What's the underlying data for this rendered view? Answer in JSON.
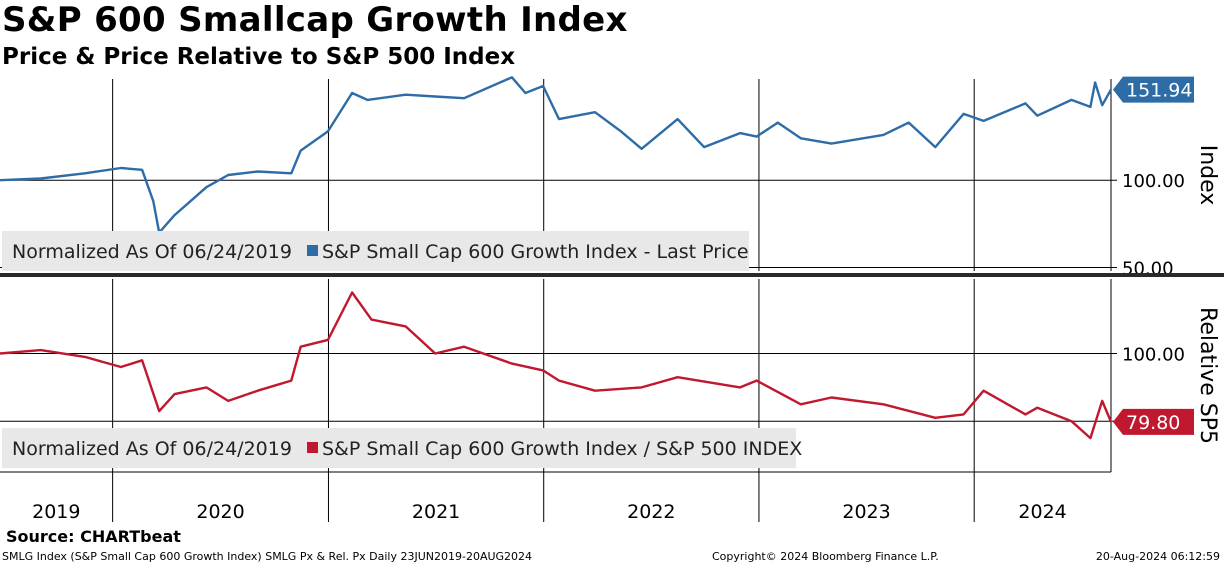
{
  "header": {
    "title": "S&P 600 Smallcap Growth Index",
    "subtitle": "Price & Price Relative to S&P 500 Index"
  },
  "footer": {
    "source": "Source: CHARTbeat",
    "left": "SMLG Index (S&P Small Cap 600 Growth Index) SMLG Px & Rel. Px  Daily 23JUN2019-20AUG2024",
    "copyright": "Copyright© 2024 Bloomberg Finance L.P.",
    "timestamp": "20-Aug-2024 06:12:59"
  },
  "colors": {
    "price_line": "#2e6ca8",
    "relative_line": "#c0182f",
    "grid": "#000000",
    "legend_bg": "#e8e8e8"
  },
  "chart_data": [
    {
      "type": "line",
      "panel": "top",
      "axis_label": "Index",
      "y_ticks": [
        50,
        100
      ],
      "y_tick_labels": [
        "50.00",
        "100.00"
      ],
      "ylim": [
        48,
        158
      ],
      "last_value": 151.94,
      "last_value_label": "151.94",
      "legend_note": "Normalized As Of 06/24/2019",
      "series": [
        {
          "name": "S&P Small Cap 600 Growth Index - Last Price",
          "x": [
            "2019-06-24",
            "2019-09-01",
            "2019-11-15",
            "2020-01-15",
            "2020-02-20",
            "2020-03-10",
            "2020-03-20",
            "2020-04-15",
            "2020-06-08",
            "2020-07-15",
            "2020-09-03",
            "2020-10-30",
            "2020-11-15",
            "2020-12-31",
            "2021-02-10",
            "2021-03-08",
            "2021-05-12",
            "2021-07-01",
            "2021-08-19",
            "2021-11-08",
            "2021-12-01",
            "2021-12-31",
            "2022-01-27",
            "2022-03-29",
            "2022-05-12",
            "2022-06-16",
            "2022-08-16",
            "2022-09-30",
            "2022-11-30",
            "2022-12-28",
            "2023-02-02",
            "2023-03-13",
            "2023-05-04",
            "2023-07-31",
            "2023-09-12",
            "2023-10-27",
            "2023-12-14",
            "2024-01-17",
            "2024-03-28",
            "2024-04-17",
            "2024-06-14",
            "2024-07-16",
            "2024-07-24",
            "2024-08-05",
            "2024-08-20"
          ],
          "values": [
            100,
            101,
            104,
            107,
            106,
            88,
            70,
            80,
            96,
            103,
            105,
            104,
            117,
            128,
            150,
            146,
            149,
            148,
            147,
            159,
            150,
            154,
            135,
            139,
            128,
            118,
            135,
            119,
            127,
            125,
            133,
            124,
            121,
            126,
            133,
            119,
            138,
            134,
            144,
            137,
            146,
            142,
            156,
            143,
            151.94
          ]
        }
      ]
    },
    {
      "type": "line",
      "panel": "bottom",
      "axis_label": "Relative SP5",
      "y_ticks": [
        80,
        100
      ],
      "y_tick_labels": [
        "",
        "100.00"
      ],
      "ylim": [
        65,
        122
      ],
      "last_value": 79.8,
      "last_value_label": "79.80",
      "legend_note": "Normalized As Of 06/24/2019",
      "series": [
        {
          "name": "S&P Small Cap 600 Growth Index / S&P 500 INDEX",
          "x": [
            "2019-06-24",
            "2019-09-01",
            "2019-11-15",
            "2020-01-15",
            "2020-02-20",
            "2020-03-20",
            "2020-04-15",
            "2020-06-08",
            "2020-07-15",
            "2020-09-03",
            "2020-10-30",
            "2020-11-15",
            "2020-12-31",
            "2021-02-10",
            "2021-03-15",
            "2021-05-12",
            "2021-07-01",
            "2021-08-19",
            "2021-11-08",
            "2021-12-31",
            "2022-01-27",
            "2022-03-29",
            "2022-06-16",
            "2022-08-16",
            "2022-11-30",
            "2022-12-28",
            "2023-03-13",
            "2023-05-04",
            "2023-07-31",
            "2023-10-27",
            "2023-12-14",
            "2024-01-17",
            "2024-03-28",
            "2024-04-17",
            "2024-06-14",
            "2024-07-16",
            "2024-08-05",
            "2024-08-20"
          ],
          "values": [
            100,
            101,
            99,
            96,
            98,
            83,
            88,
            90,
            86,
            89,
            92,
            102,
            104,
            118,
            110,
            108,
            100,
            102,
            97,
            95,
            92,
            89,
            90,
            93,
            90,
            92,
            85,
            87,
            85,
            81,
            82,
            89,
            82,
            84,
            80,
            75,
            86,
            79.8
          ]
        }
      ]
    }
  ],
  "x_axis": {
    "years": [
      "2019",
      "2020",
      "2021",
      "2022",
      "2023",
      "2024"
    ],
    "start": "2019-06-24",
    "end": "2024-08-20"
  }
}
